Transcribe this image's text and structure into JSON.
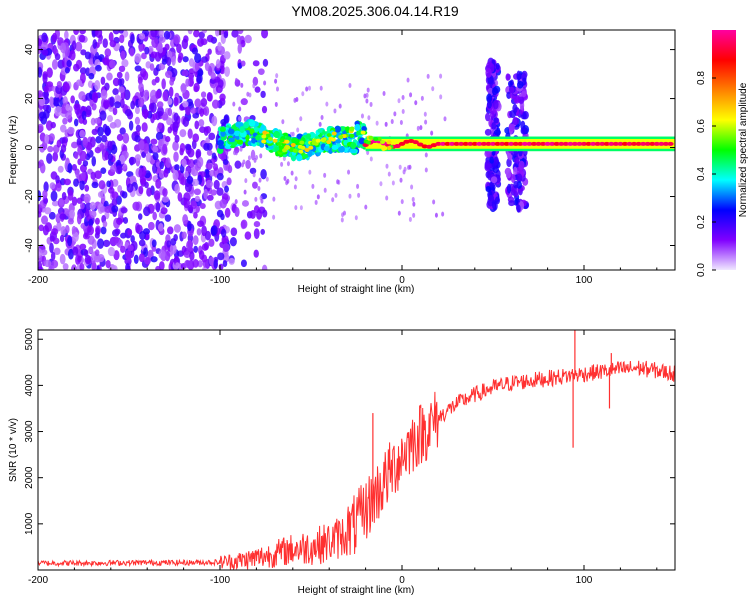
{
  "title": "YM08.2025.306.04.14.R19",
  "chart_data": [
    {
      "type": "heatmap",
      "xlabel": "Height of straight line (km)",
      "ylabel": "Frequency (Hz)",
      "xlim": [
        -200,
        150
      ],
      "ylim": [
        -50,
        48
      ],
      "xticks": [
        -200,
        -100,
        0,
        100
      ],
      "yticks": [
        -40,
        -20,
        0,
        20,
        40
      ],
      "colorbar": {
        "label": "Normalized spectral amplitude",
        "range": [
          0,
          1
        ],
        "ticks": [
          "0.0",
          "0.2",
          "0.4",
          "0.6",
          "0.8"
        ],
        "stops": [
          "#f0e8ff",
          "#8000ff",
          "#0000ff",
          "#00ffff",
          "#00ff00",
          "#ffff00",
          "#ff8000",
          "#ff0000",
          "#ff00a0"
        ]
      },
      "bands": [
        {
          "name": "noise-region",
          "x": [
            -200,
            -95
          ],
          "y": [
            -50,
            48
          ],
          "level": 0.2
        },
        {
          "name": "trace-onset",
          "x": [
            -100,
            -20
          ],
          "y": [
            -5,
            10
          ],
          "level": 0.5
        },
        {
          "name": "stable-trace",
          "x": [
            -20,
            150
          ],
          "y": [
            0,
            3
          ],
          "level": 0.95
        },
        {
          "name": "burst-1",
          "x": [
            47,
            53
          ],
          "y": [
            -25,
            35
          ],
          "level": 0.25
        },
        {
          "name": "burst-2",
          "x": [
            58,
            68
          ],
          "y": [
            -25,
            30
          ],
          "level": 0.25
        }
      ]
    },
    {
      "type": "line",
      "xlabel": "Height of straight line (km)",
      "ylabel": "SNR (10 * v/v)",
      "xlim": [
        -200,
        150
      ],
      "ylim": [
        0,
        5200
      ],
      "xticks": [
        -200,
        -100,
        0,
        100
      ],
      "yticks": [
        1000,
        2000,
        3000,
        4000,
        5000
      ],
      "color": "#ff3030",
      "series": [
        {
          "name": "SNR",
          "x": [
            -200,
            -180,
            -160,
            -140,
            -120,
            -100,
            -90,
            -80,
            -70,
            -60,
            -50,
            -40,
            -30,
            -25,
            -20,
            -15,
            -10,
            -5,
            0,
            5,
            10,
            15,
            20,
            25,
            30,
            40,
            50,
            60,
            70,
            80,
            90,
            100,
            110,
            120,
            130,
            140,
            150
          ],
          "y": [
            150,
            150,
            155,
            160,
            160,
            170,
            200,
            260,
            350,
            450,
            500,
            600,
            800,
            1000,
            1300,
            1600,
            1900,
            2200,
            2500,
            2750,
            2950,
            3100,
            3300,
            3450,
            3600,
            3800,
            3950,
            4050,
            4100,
            4150,
            4200,
            4250,
            4300,
            4350,
            4380,
            4320,
            4250
          ]
        }
      ],
      "spikes": [
        {
          "x": -16,
          "y": 3400
        },
        {
          "x": 95,
          "y": 5200
        },
        {
          "x": 94,
          "y": 2650
        },
        {
          "x": 115,
          "y": 4700
        },
        {
          "x": 114,
          "y": 3500
        }
      ]
    }
  ]
}
